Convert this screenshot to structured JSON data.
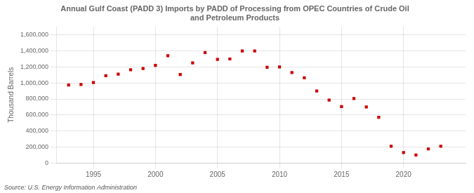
{
  "chart_data": {
    "type": "scatter",
    "title": "Annual Gulf Coast (PADD 3) Imports by PADD of Processing from OPEC Countries of Crude Oil\nand Petroleum Products",
    "y_label": "Thousand Barrels",
    "annotations": [
      "Source: U.S. Energy Information Administration"
    ],
    "x": [
      1993,
      1994,
      1995,
      1996,
      1997,
      1998,
      1999,
      2000,
      2001,
      2002,
      2003,
      2004,
      2005,
      2006,
      2007,
      2008,
      2009,
      2010,
      2011,
      2012,
      2013,
      2014,
      2015,
      2016,
      2017,
      2018,
      2019,
      2020,
      2021,
      2022,
      2023
    ],
    "values": [
      975000,
      980000,
      1005000,
      1090000,
      1110000,
      1165000,
      1180000,
      1220000,
      1340000,
      1105000,
      1250000,
      1380000,
      1295000,
      1300000,
      1400000,
      1400000,
      1195000,
      1200000,
      1130000,
      1065000,
      900000,
      785000,
      705000,
      805000,
      700000,
      570000,
      210000,
      130000,
      100000,
      175000,
      210000
    ],
    "color": "#cc0000",
    "marker": "square",
    "xlim": [
      1992,
      2025
    ],
    "xticks": [
      1995,
      2000,
      2005,
      2010,
      2015,
      2020
    ],
    "ylim": [
      0,
      1700000
    ],
    "yticks": [
      0,
      {
        "value": 200000,
        "label": "200,000"
      },
      {
        "value": 400000,
        "label": "400,000"
      },
      {
        "value": 600000,
        "label": "600,000"
      },
      {
        "value": 800000,
        "label": "800,000"
      },
      {
        "value": 1000000,
        "label": "1,000,000"
      },
      {
        "value": 1200000,
        "label": "1,200,000"
      },
      {
        "value": 1400000,
        "label": "1,400,000"
      },
      {
        "value": 1600000,
        "label": "1,600,000"
      }
    ],
    "grid": true
  }
}
